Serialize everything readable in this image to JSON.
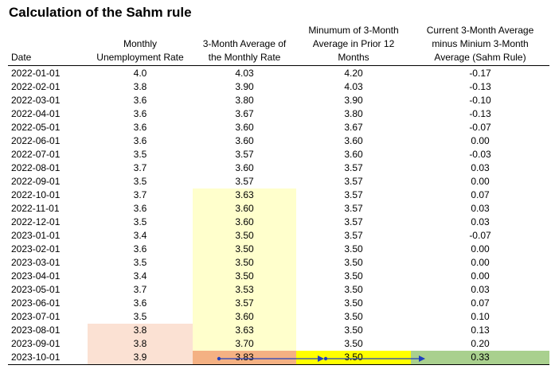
{
  "title": "Calculation of the Sahm rule",
  "headers": {
    "date": "Date",
    "rate": "Monthly\nUnemployment Rate",
    "avg3": "3-Month Average of\nthe Monthly Rate",
    "min12": "Minumum of 3-Month\nAverage in Prior 12\nMonths",
    "sahm": "Current 3-Month Average\nminus Minium 3-Month\nAverage (Sahm Rule)"
  },
  "colors": {
    "light_yellow": "#ffffcc",
    "peach": "#fbe1d3",
    "orange": "#f4b183",
    "yellow": "#ffff00",
    "green": "#a9d08e",
    "arrow": "#1f3fbf"
  },
  "rows": [
    {
      "date": "2022-01-01",
      "rate": "4.0",
      "avg3": "4.03",
      "min12": "4.20",
      "sahm": "-0.17"
    },
    {
      "date": "2022-02-01",
      "rate": "3.8",
      "avg3": "3.90",
      "min12": "4.03",
      "sahm": "-0.13"
    },
    {
      "date": "2022-03-01",
      "rate": "3.6",
      "avg3": "3.80",
      "min12": "3.90",
      "sahm": "-0.10"
    },
    {
      "date": "2022-04-01",
      "rate": "3.6",
      "avg3": "3.67",
      "min12": "3.80",
      "sahm": "-0.13"
    },
    {
      "date": "2022-05-01",
      "rate": "3.6",
      "avg3": "3.60",
      "min12": "3.67",
      "sahm": "-0.07"
    },
    {
      "date": "2022-06-01",
      "rate": "3.6",
      "avg3": "3.60",
      "min12": "3.60",
      "sahm": "0.00"
    },
    {
      "date": "2022-07-01",
      "rate": "3.5",
      "avg3": "3.57",
      "min12": "3.60",
      "sahm": "-0.03"
    },
    {
      "date": "2022-08-01",
      "rate": "3.7",
      "avg3": "3.60",
      "min12": "3.57",
      "sahm": "0.03"
    },
    {
      "date": "2022-09-01",
      "rate": "3.5",
      "avg3": "3.57",
      "min12": "3.57",
      "sahm": "0.00"
    },
    {
      "date": "2022-10-01",
      "rate": "3.7",
      "avg3": "3.63",
      "min12": "3.57",
      "sahm": "0.07"
    },
    {
      "date": "2022-11-01",
      "rate": "3.6",
      "avg3": "3.60",
      "min12": "3.57",
      "sahm": "0.03"
    },
    {
      "date": "2022-12-01",
      "rate": "3.5",
      "avg3": "3.60",
      "min12": "3.57",
      "sahm": "0.03"
    },
    {
      "date": "2023-01-01",
      "rate": "3.4",
      "avg3": "3.50",
      "min12": "3.57",
      "sahm": "-0.07"
    },
    {
      "date": "2023-02-01",
      "rate": "3.6",
      "avg3": "3.50",
      "min12": "3.50",
      "sahm": "0.00"
    },
    {
      "date": "2023-03-01",
      "rate": "3.5",
      "avg3": "3.50",
      "min12": "3.50",
      "sahm": "0.00"
    },
    {
      "date": "2023-04-01",
      "rate": "3.4",
      "avg3": "3.50",
      "min12": "3.50",
      "sahm": "0.00"
    },
    {
      "date": "2023-05-01",
      "rate": "3.7",
      "avg3": "3.53",
      "min12": "3.50",
      "sahm": "0.03"
    },
    {
      "date": "2023-06-01",
      "rate": "3.6",
      "avg3": "3.57",
      "min12": "3.50",
      "sahm": "0.07"
    },
    {
      "date": "2023-07-01",
      "rate": "3.5",
      "avg3": "3.60",
      "min12": "3.50",
      "sahm": "0.10"
    },
    {
      "date": "2023-08-01",
      "rate": "3.8",
      "avg3": "3.63",
      "min12": "3.50",
      "sahm": "0.13"
    },
    {
      "date": "2023-09-01",
      "rate": "3.8",
      "avg3": "3.70",
      "min12": "3.50",
      "sahm": "0.20"
    },
    {
      "date": "2023-10-01",
      "rate": "3.9",
      "avg3": "3.83",
      "min12": "3.50",
      "sahm": "0.33"
    }
  ],
  "highlights": {
    "avg3_window_rows": [
      9,
      10,
      11,
      12,
      13,
      14,
      15,
      16,
      17,
      18,
      19,
      20
    ],
    "rate_window_rows": [
      19,
      20
    ],
    "final_row": 21
  }
}
